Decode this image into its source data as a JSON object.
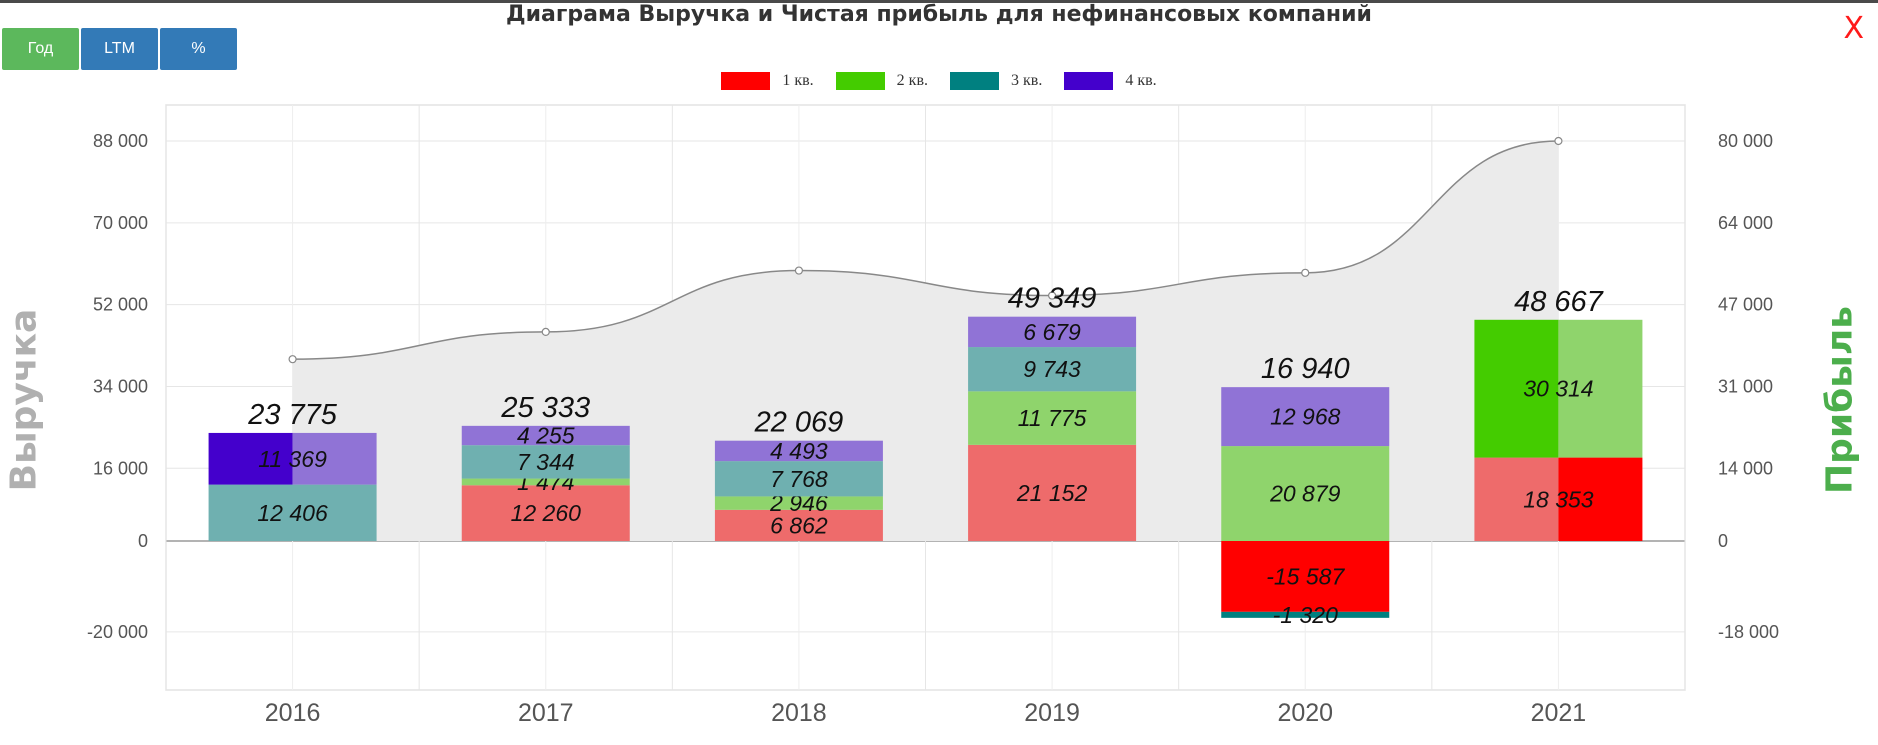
{
  "title": "Диаграма Выручка и Чистая прибыль для нефинансовых компаний",
  "close_label": "X",
  "buttons": [
    {
      "label": "Год",
      "color": "#5cb85c"
    },
    {
      "label": "LTM",
      "color": "#337ab7"
    },
    {
      "label": "%",
      "color": "#337ab7"
    }
  ],
  "legend": [
    {
      "label": "1 кв.",
      "color": "#ff0000"
    },
    {
      "label": "2 кв.",
      "color": "#44cc00"
    },
    {
      "label": "3 кв.",
      "color": "#008080"
    },
    {
      "label": "4 кв.",
      "color": "#4400cc"
    }
  ],
  "chart_data": {
    "type": "bar",
    "stacked": true,
    "categories": [
      "2016",
      "2017",
      "2018",
      "2019",
      "2020",
      "2021"
    ],
    "left_axis": {
      "label": "Выручка",
      "ticks": [
        -20000,
        0,
        16000,
        34000,
        52000,
        70000,
        88000
      ],
      "tick_labels": [
        "-20 000",
        "0",
        "16 000",
        "34 000",
        "52 000",
        "70 000",
        "88 000"
      ]
    },
    "right_axis": {
      "label": "Прибыль",
      "ticks": [
        -18000,
        0,
        14000,
        31000,
        47000,
        64000,
        80000
      ],
      "tick_labels": [
        "-18 000",
        "0",
        "14 000",
        "31 000",
        "47 000",
        "64 000",
        "80 000"
      ]
    },
    "revenue_line": {
      "axis": "left",
      "values": [
        40000,
        46000,
        59500,
        54000,
        59000,
        88000
      ]
    },
    "profit_series": [
      {
        "name": "1 кв.",
        "color": "#ff0000",
        "values": [
          null,
          12260,
          6862,
          21152,
          -15587,
          18353
        ]
      },
      {
        "name": "2 кв.",
        "color": "#44cc00",
        "values": [
          null,
          1474,
          2946,
          11775,
          20879,
          30314
        ]
      },
      {
        "name": "3 кв.",
        "color": "#008080",
        "values": [
          12406,
          7344,
          7768,
          9743,
          -1320,
          null
        ]
      },
      {
        "name": "4 кв.",
        "color": "#4400cc",
        "values": [
          11369,
          4255,
          4493,
          6679,
          12968,
          null
        ]
      }
    ],
    "value_labels": [
      [
        "",
        "12 260",
        "6 862",
        "21 152",
        "-15 587",
        "18 353"
      ],
      [
        "",
        "1 474",
        "2 946",
        "11 775",
        "20 879",
        "30 314"
      ],
      [
        "12 406",
        "7 344",
        "7 768",
        "9 743",
        "-1 320",
        ""
      ],
      [
        "11 369",
        "4 255",
        "4 493",
        "6 679",
        "12 968",
        ""
      ]
    ],
    "totals": [
      23775,
      25333,
      22069,
      49349,
      16940,
      48667
    ],
    "total_labels": [
      "23 775",
      "25 333",
      "22 069",
      "49 349",
      "16 940",
      "48 667"
    ],
    "highlighted_quarter": [
      4,
      null,
      null,
      null,
      1,
      2
    ],
    "grid": true
  }
}
